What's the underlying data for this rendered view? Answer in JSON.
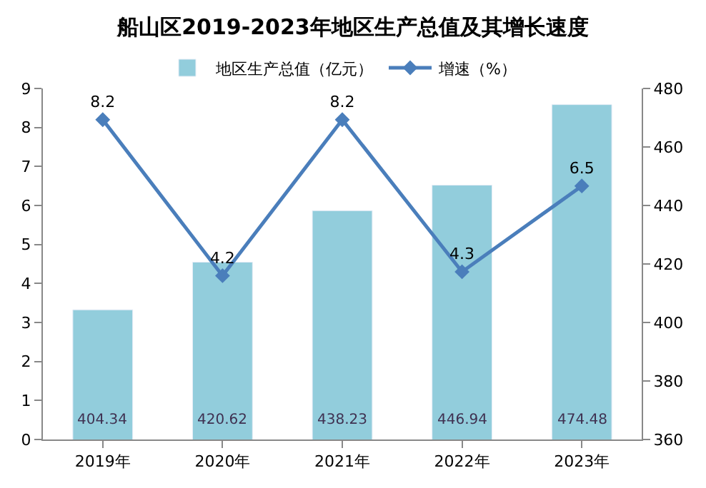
{
  "chart_data": {
    "type": "bar",
    "title": "船山区2019-2023年地区生产总值及其增长速度",
    "categories": [
      "2019年",
      "2020年",
      "2021年",
      "2022年",
      "2023年"
    ],
    "series": [
      {
        "name": "地区生产总值（亿元）",
        "axis": "y2",
        "color": "#92cddc",
        "values": [
          404.34,
          420.62,
          438.23,
          446.94,
          474.48
        ]
      },
      {
        "name": "增速（%）",
        "type": "line",
        "axis": "y",
        "color": "#4a7ebb",
        "marker": "diamond",
        "values": [
          8.2,
          4.2,
          8.2,
          4.3,
          6.5
        ]
      }
    ],
    "ylim": [
      0,
      9
    ],
    "yticks": [
      0,
      1,
      2,
      3,
      4,
      5,
      6,
      7,
      8,
      9
    ],
    "y2lim": [
      360,
      480
    ],
    "y2ticks": [
      360,
      380,
      400,
      420,
      440,
      460,
      480
    ],
    "data_labels": true,
    "legend": "top"
  }
}
